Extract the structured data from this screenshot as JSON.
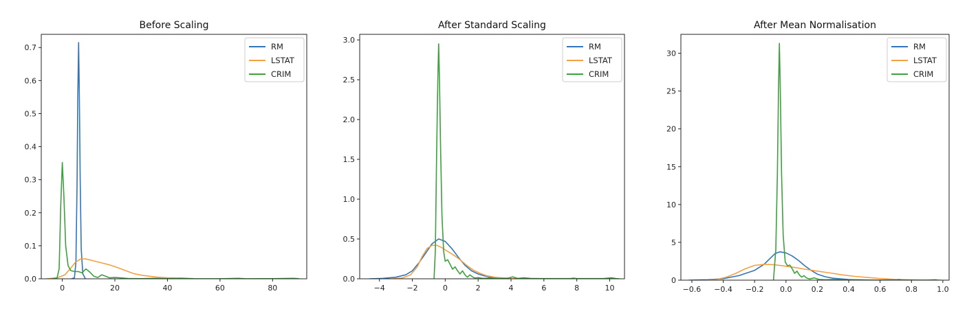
{
  "colors": {
    "RM": "#3274b5",
    "LSTAT": "#f2a043",
    "CRIM": "#3da03d"
  },
  "chart_data": [
    {
      "type": "line",
      "title": "Before Scaling",
      "xlabel": "",
      "ylabel": "",
      "xlim": [
        -8,
        93
      ],
      "ylim": [
        0,
        0.74
      ],
      "xticks": [
        0,
        20,
        40,
        60,
        80
      ],
      "yticks": [
        0.0,
        0.1,
        0.2,
        0.3,
        0.4,
        0.5,
        0.6,
        0.7
      ],
      "tick_decimals": 1,
      "legend_position": "top-right",
      "series": [
        {
          "name": "RM",
          "color": "#3274b5",
          "points": [
            [
              3.5,
              0
            ],
            [
              4.6,
              0.003
            ],
            [
              5.2,
              0.05
            ],
            [
              5.6,
              0.28
            ],
            [
              5.9,
              0.55
            ],
            [
              6.2,
              0.715
            ],
            [
              6.5,
              0.55
            ],
            [
              6.8,
              0.3
            ],
            [
              7.2,
              0.09
            ],
            [
              7.8,
              0.015
            ],
            [
              8.8,
              0
            ]
          ]
        },
        {
          "name": "LSTAT",
          "color": "#f2a043",
          "points": [
            [
              -6,
              0
            ],
            [
              -2,
              0.003
            ],
            [
              1,
              0.012
            ],
            [
              3,
              0.03
            ],
            [
              5,
              0.05
            ],
            [
              7,
              0.06
            ],
            [
              9,
              0.06
            ],
            [
              12,
              0.054
            ],
            [
              15,
              0.048
            ],
            [
              18,
              0.042
            ],
            [
              21,
              0.034
            ],
            [
              24,
              0.025
            ],
            [
              27,
              0.016
            ],
            [
              30,
              0.011
            ],
            [
              33,
              0.008
            ],
            [
              36,
              0.005
            ],
            [
              40,
              0.003
            ],
            [
              46,
              0.001
            ],
            [
              50,
              0
            ]
          ]
        },
        {
          "name": "CRIM",
          "color": "#3da03d",
          "points": [
            [
              -4,
              0
            ],
            [
              -2,
              0.002
            ],
            [
              -1.2,
              0.03
            ],
            [
              -0.6,
              0.22
            ],
            [
              0,
              0.352
            ],
            [
              0.6,
              0.25
            ],
            [
              1.3,
              0.1
            ],
            [
              2.2,
              0.04
            ],
            [
              3.2,
              0.025
            ],
            [
              4.5,
              0.022
            ],
            [
              6,
              0.022
            ],
            [
              7.5,
              0.018
            ],
            [
              9,
              0.03
            ],
            [
              10.5,
              0.02
            ],
            [
              12,
              0.008
            ],
            [
              13.5,
              0.004
            ],
            [
              15,
              0.012
            ],
            [
              16.5,
              0.008
            ],
            [
              18,
              0.003
            ],
            [
              20,
              0.004
            ],
            [
              22,
              0.003
            ],
            [
              25,
              0.001
            ],
            [
              30,
              0.0005
            ],
            [
              35,
              0.0015
            ],
            [
              40,
              0.0005
            ],
            [
              45,
              0.002
            ],
            [
              50,
              0.0005
            ],
            [
              60,
              0.0003
            ],
            [
              67,
              0.0015
            ],
            [
              70,
              0.0003
            ],
            [
              80,
              0.0004
            ],
            [
              88,
              0.0015
            ],
            [
              90,
              0.0004
            ]
          ]
        }
      ]
    },
    {
      "type": "line",
      "title": "After Standard Scaling",
      "xlabel": "",
      "ylabel": "",
      "xlim": [
        -5.2,
        10.9
      ],
      "ylim": [
        0,
        3.07
      ],
      "xticks": [
        -4,
        -2,
        0,
        2,
        4,
        6,
        8,
        10
      ],
      "yticks": [
        0.0,
        0.5,
        1.0,
        1.5,
        2.0,
        2.5,
        3.0
      ],
      "tick_decimals": 1,
      "legend_position": "top-right",
      "series": [
        {
          "name": "RM",
          "color": "#3274b5",
          "points": [
            [
              -4.6,
              0
            ],
            [
              -3.8,
              0.005
            ],
            [
              -3,
              0.02
            ],
            [
              -2.4,
              0.05
            ],
            [
              -2,
              0.1
            ],
            [
              -1.6,
              0.2
            ],
            [
              -1.2,
              0.32
            ],
            [
              -0.8,
              0.44
            ],
            [
              -0.4,
              0.5
            ],
            [
              0,
              0.47
            ],
            [
              0.4,
              0.38
            ],
            [
              0.8,
              0.27
            ],
            [
              1.2,
              0.17
            ],
            [
              1.6,
              0.1
            ],
            [
              2,
              0.06
            ],
            [
              2.4,
              0.035
            ],
            [
              2.8,
              0.02
            ],
            [
              3.2,
              0.01
            ],
            [
              3.6,
              0.004
            ],
            [
              4.4,
              0
            ]
          ]
        },
        {
          "name": "LSTAT",
          "color": "#f2a043",
          "points": [
            [
              -3.2,
              0
            ],
            [
              -2.6,
              0.01
            ],
            [
              -2.1,
              0.05
            ],
            [
              -1.7,
              0.15
            ],
            [
              -1.4,
              0.28
            ],
            [
              -1.1,
              0.38
            ],
            [
              -0.8,
              0.42
            ],
            [
              -0.5,
              0.42
            ],
            [
              -0.2,
              0.39
            ],
            [
              0.1,
              0.35
            ],
            [
              0.5,
              0.3
            ],
            [
              0.9,
              0.24
            ],
            [
              1.3,
              0.17
            ],
            [
              1.7,
              0.11
            ],
            [
              2.1,
              0.07
            ],
            [
              2.5,
              0.04
            ],
            [
              3,
              0.02
            ],
            [
              3.5,
              0.01
            ],
            [
              4,
              0.004
            ],
            [
              4.6,
              0
            ]
          ]
        },
        {
          "name": "CRIM",
          "color": "#3da03d",
          "points": [
            [
              -0.68,
              0
            ],
            [
              -0.6,
              0.35
            ],
            [
              -0.52,
              1.6
            ],
            [
              -0.45,
              2.5
            ],
            [
              -0.4,
              2.95
            ],
            [
              -0.35,
              2.5
            ],
            [
              -0.28,
              1.6
            ],
            [
              -0.2,
              0.8
            ],
            [
              -0.1,
              0.35
            ],
            [
              0,
              0.22
            ],
            [
              0.15,
              0.24
            ],
            [
              0.3,
              0.18
            ],
            [
              0.45,
              0.12
            ],
            [
              0.6,
              0.15
            ],
            [
              0.75,
              0.1
            ],
            [
              0.9,
              0.06
            ],
            [
              1.05,
              0.1
            ],
            [
              1.2,
              0.05
            ],
            [
              1.35,
              0.02
            ],
            [
              1.5,
              0.05
            ],
            [
              1.65,
              0.025
            ],
            [
              1.8,
              0.01
            ],
            [
              2,
              0.015
            ],
            [
              2.3,
              0.005
            ],
            [
              2.7,
              0.01
            ],
            [
              3.2,
              0.004
            ],
            [
              3.8,
              0.008
            ],
            [
              4.1,
              0.025
            ],
            [
              4.4,
              0.005
            ],
            [
              4.8,
              0.012
            ],
            [
              5.2,
              0.005
            ],
            [
              5.8,
              0.003
            ],
            [
              6.6,
              0.003
            ],
            [
              7.6,
              0.003
            ],
            [
              7.8,
              0.008
            ],
            [
              8,
              0.003
            ],
            [
              9.6,
              0.003
            ],
            [
              10.1,
              0.012
            ],
            [
              10.4,
              0.003
            ],
            [
              10.6,
              0
            ]
          ]
        }
      ]
    },
    {
      "type": "line",
      "title": "After Mean Normalisation",
      "xlabel": "",
      "ylabel": "",
      "xlim": [
        -0.67,
        1.04
      ],
      "ylim": [
        0,
        32.5
      ],
      "xticks": [
        -0.6,
        -0.4,
        -0.2,
        0.0,
        0.2,
        0.4,
        0.6,
        0.8,
        1.0
      ],
      "yticks": [
        0,
        5,
        10,
        15,
        20,
        25,
        30
      ],
      "tick_decimals": 0,
      "x_tick_decimals": 1,
      "legend_position": "top-right",
      "series": [
        {
          "name": "RM",
          "color": "#3274b5",
          "points": [
            [
              -0.62,
              0
            ],
            [
              -0.5,
              0.05
            ],
            [
              -0.4,
              0.2
            ],
            [
              -0.3,
              0.6
            ],
            [
              -0.2,
              1.3
            ],
            [
              -0.14,
              2.1
            ],
            [
              -0.1,
              2.9
            ],
            [
              -0.07,
              3.5
            ],
            [
              -0.04,
              3.75
            ],
            [
              0,
              3.6
            ],
            [
              0.04,
              3.2
            ],
            [
              0.08,
              2.6
            ],
            [
              0.12,
              1.9
            ],
            [
              0.16,
              1.3
            ],
            [
              0.2,
              0.8
            ],
            [
              0.25,
              0.45
            ],
            [
              0.3,
              0.25
            ],
            [
              0.4,
              0.08
            ],
            [
              0.5,
              0.02
            ],
            [
              0.6,
              0
            ]
          ]
        },
        {
          "name": "LSTAT",
          "color": "#f2a043",
          "points": [
            [
              -0.5,
              0
            ],
            [
              -0.44,
              0.1
            ],
            [
              -0.38,
              0.4
            ],
            [
              -0.32,
              0.9
            ],
            [
              -0.26,
              1.5
            ],
            [
              -0.2,
              1.95
            ],
            [
              -0.14,
              2.1
            ],
            [
              -0.08,
              2.05
            ],
            [
              -0.02,
              1.9
            ],
            [
              0.05,
              1.7
            ],
            [
              0.12,
              1.45
            ],
            [
              0.2,
              1.2
            ],
            [
              0.28,
              0.95
            ],
            [
              0.36,
              0.7
            ],
            [
              0.44,
              0.5
            ],
            [
              0.52,
              0.35
            ],
            [
              0.6,
              0.22
            ],
            [
              0.7,
              0.1
            ],
            [
              0.8,
              0.04
            ],
            [
              0.9,
              0
            ]
          ]
        },
        {
          "name": "CRIM",
          "color": "#3da03d",
          "points": [
            [
              -0.08,
              0
            ],
            [
              -0.065,
              4
            ],
            [
              -0.055,
              14
            ],
            [
              -0.048,
              25
            ],
            [
              -0.042,
              31.3
            ],
            [
              -0.036,
              25
            ],
            [
              -0.028,
              14
            ],
            [
              -0.018,
              6
            ],
            [
              -0.005,
              2.4
            ],
            [
              0.01,
              1.9
            ],
            [
              0.025,
              2.0
            ],
            [
              0.04,
              1.5
            ],
            [
              0.055,
              0.9
            ],
            [
              0.07,
              1.2
            ],
            [
              0.085,
              0.7
            ],
            [
              0.1,
              0.4
            ],
            [
              0.115,
              0.6
            ],
            [
              0.13,
              0.3
            ],
            [
              0.15,
              0.15
            ],
            [
              0.18,
              0.3
            ],
            [
              0.21,
              0.1
            ],
            [
              0.25,
              0.05
            ],
            [
              0.3,
              0.08
            ],
            [
              0.38,
              0.03
            ],
            [
              0.45,
              0.05
            ],
            [
              0.55,
              0.02
            ],
            [
              0.7,
              0.02
            ],
            [
              0.72,
              0.08
            ],
            [
              0.74,
              0.02
            ],
            [
              0.9,
              0.01
            ],
            [
              0.95,
              0.05
            ],
            [
              0.97,
              0.01
            ],
            [
              0.99,
              0
            ]
          ]
        }
      ]
    }
  ]
}
